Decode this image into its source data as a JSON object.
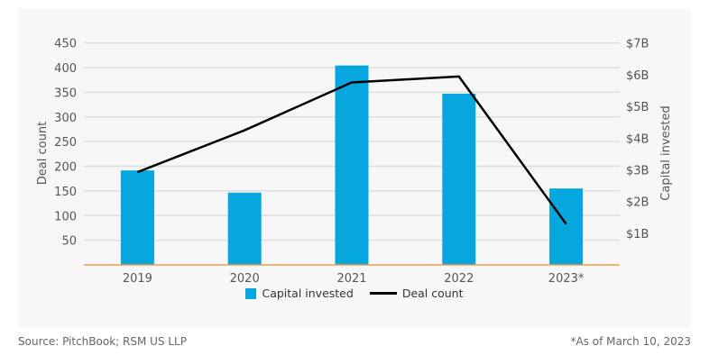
{
  "chart_data": {
    "type": "bar+line",
    "categories": [
      "2019",
      "2020",
      "2021",
      "2022",
      "2023*"
    ],
    "series": [
      {
        "name": "Capital invested",
        "type": "bar",
        "axis": "right",
        "values": [
          2.98,
          2.28,
          6.29,
          5.4,
          2.41
        ],
        "color": "#06a6df"
      },
      {
        "name": "Deal count",
        "type": "line",
        "axis": "left",
        "values": [
          188,
          273,
          370,
          382,
          83
        ],
        "color": "#000000"
      }
    ],
    "ylabel_left": "Deal count",
    "ylabel_right": "Capital invested",
    "ylim_left": [
      0,
      450
    ],
    "ylim_right": [
      0,
      7
    ],
    "left_ticks": [
      "50",
      "100",
      "150",
      "200",
      "250",
      "300",
      "350",
      "400",
      "450"
    ],
    "right_ticks": [
      "$1B",
      "$2B",
      "$3B",
      "$4B",
      "$5B",
      "$6B",
      "$7B"
    ],
    "grid": true,
    "legend": "bottom",
    "axis_color": "#f39c4a"
  },
  "footer": {
    "source": "Source: PitchBook; RSM US LLP",
    "note": "*As of March 10, 2023"
  }
}
